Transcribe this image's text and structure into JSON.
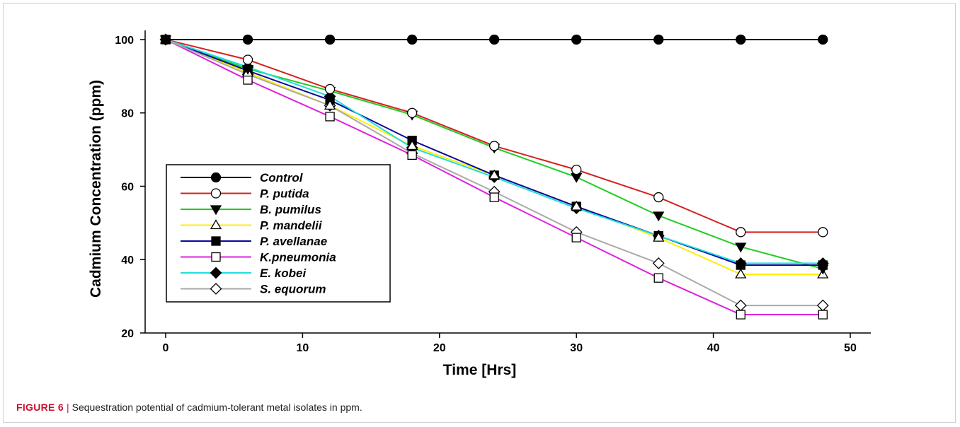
{
  "caption": {
    "label": "FIGURE 6",
    "separator": "|",
    "text": "Sequestration potential of cadmium-tolerant metal isolates in ppm."
  },
  "chart_data": {
    "type": "line",
    "xlabel": "Time [Hrs]",
    "ylabel": "Cadmium Concentration (ppm)",
    "xlim": [
      -1.5,
      51.5
    ],
    "ylim": [
      20,
      102.5
    ],
    "xticks": [
      0,
      10,
      20,
      30,
      40,
      50
    ],
    "yticks": [
      20,
      40,
      60,
      80,
      100
    ],
    "grid": false,
    "legend_position": "center-left",
    "x": [
      0,
      6,
      12,
      18,
      24,
      30,
      36,
      42,
      48
    ],
    "series": [
      {
        "name": "Control",
        "color": "#000000",
        "marker": "circle",
        "fill": "filled",
        "values": [
          100,
          100,
          100,
          100,
          100,
          100,
          100,
          100,
          100
        ]
      },
      {
        "name": "P. putida",
        "color": "#d62020",
        "marker": "circle",
        "fill": "open",
        "values": [
          100,
          94.5,
          86.5,
          80,
          71,
          64.5,
          57,
          47.5,
          47.5
        ]
      },
      {
        "name": "B. pumilus",
        "color": "#22cc22",
        "marker": "triangle-down",
        "fill": "filled",
        "values": [
          100,
          92,
          86,
          79.5,
          70.5,
          62.5,
          52,
          43.5,
          37.5
        ]
      },
      {
        "name": "P. mandelii",
        "color": "#ffee00",
        "marker": "triangle-up",
        "fill": "open",
        "values": [
          100,
          91,
          82,
          71,
          63,
          54.5,
          46,
          36,
          36
        ]
      },
      {
        "name": "P. avellanae",
        "color": "#0a0a9a",
        "marker": "square",
        "fill": "filled",
        "values": [
          100,
          91.5,
          83.5,
          72.5,
          63,
          54.5,
          46.5,
          38.5,
          38.5
        ]
      },
      {
        "name": "K.pneumonia",
        "color": "#dd22dd",
        "marker": "square",
        "fill": "open",
        "values": [
          100,
          89,
          79,
          68.5,
          57,
          46,
          35,
          25,
          25
        ]
      },
      {
        "name": "E. kobei",
        "color": "#22dddd",
        "marker": "diamond",
        "fill": "filled",
        "values": [
          100,
          92.5,
          84.5,
          70.5,
          62.5,
          54,
          46.5,
          39,
          39
        ]
      },
      {
        "name": "S. equorum",
        "color": "#aaaaaa",
        "marker": "diamond",
        "fill": "open",
        "values": [
          100,
          90.5,
          82,
          69,
          58.5,
          47.5,
          39,
          27.5,
          27.5
        ]
      }
    ]
  }
}
